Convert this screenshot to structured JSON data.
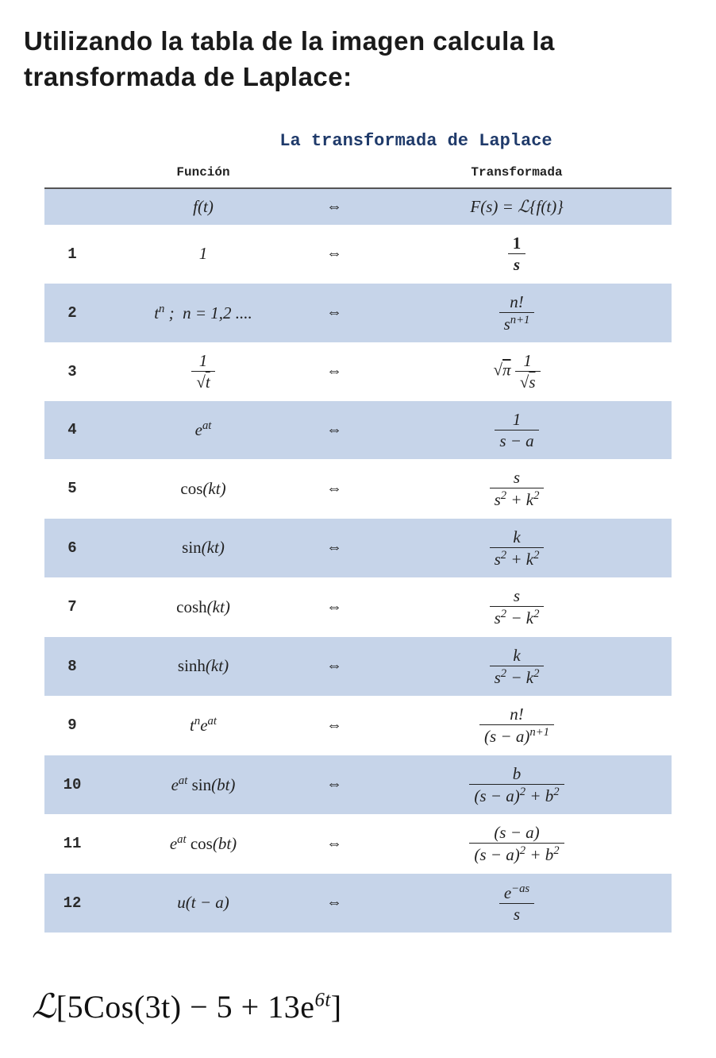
{
  "title_line1": "Utilizando la tabla de la imagen calcula la",
  "title_line2": "transformada de Laplace:",
  "figure": {
    "caption": "La transformada de Laplace",
    "header_func": "Función",
    "header_trans": "Transformada",
    "arrow_glyph": "⇔",
    "header_row": {
      "func": "f(t)",
      "trans_lhs": "F(s) = ℒ{f(t)}"
    },
    "rows": [
      {
        "n": "1",
        "func_html": "1",
        "trans_html": "<span class='frac'><span class='num'><b class='upright'>1</b></span><span class='den'><b>s</b></span></span>"
      },
      {
        "n": "2",
        "func_html": "t<span class='sup'>n</span> ;&nbsp; n = 1,2 ....",
        "trans_html": "<span class='frac'><span class='num'>n!</span><span class='den'>s<span class='sup'>n+1</span></span></span>"
      },
      {
        "n": "3",
        "func_html": "<span class='frac'><span class='num'>1</span><span class='den'>√<span style='text-decoration:overline'>t</span></span></span>",
        "trans_html": "√<span style='text-decoration:overline'>π</span> <span class='frac'><span class='num'>1</span><span class='den'>√<span style='text-decoration:overline'>s</span></span></span>"
      },
      {
        "n": "4",
        "func_html": "e<span class='sup'>at</span>",
        "trans_html": "<span class='frac'><span class='num'>1</span><span class='den'>s − a</span></span>"
      },
      {
        "n": "5",
        "func_html": "<span class='upright'>cos</span>(kt)",
        "trans_html": "<span class='frac'><span class='num'>s</span><span class='den'>s<span class='sup'>2</span> + k<span class='sup'>2</span></span></span>"
      },
      {
        "n": "6",
        "func_html": "<span class='upright'>sin</span>(kt)",
        "trans_html": "<span class='frac'><span class='num'>k</span><span class='den'>s<span class='sup'>2</span> + k<span class='sup'>2</span></span></span>"
      },
      {
        "n": "7",
        "func_html": "<span class='upright'>cosh</span>(kt)",
        "trans_html": "<span class='frac'><span class='num'>s</span><span class='den'>s<span class='sup'>2</span> − k<span class='sup'>2</span></span></span>"
      },
      {
        "n": "8",
        "func_html": "<span class='upright'>sinh</span>(kt)",
        "trans_html": "<span class='frac'><span class='num'>k</span><span class='den'>s<span class='sup'>2</span> − k<span class='sup'>2</span></span></span>"
      },
      {
        "n": "9",
        "func_html": "t<span class='sup'>n</span>e<span class='sup'>at</span>",
        "trans_html": "<span class='frac'><span class='num'>n!</span><span class='den'>(s − a)<span class='sup'>n+1</span></span></span>"
      },
      {
        "n": "10",
        "func_html": "e<span class='sup'>at</span> <span class='upright'>sin</span>(bt)",
        "trans_html": "<span class='frac'><span class='num'>b</span><span class='den'>(s − a)<span class='sup'>2</span> + b<span class='sup'>2</span></span></span>"
      },
      {
        "n": "11",
        "func_html": "e<span class='sup'>at</span> <span class='upright'>cos</span>(bt)",
        "trans_html": "<span class='frac'><span class='num'>(s − a)</span><span class='den'>(s − a)<span class='sup'>2</span> + b<span class='sup'>2</span></span></span>"
      },
      {
        "n": "12",
        "func_html": "u(t − a)",
        "trans_html": "<span class='frac'><span class='num'>e<span class='sup'>−as</span></span><span class='den'>s</span></span>"
      }
    ],
    "colors": {
      "band_even": "#c6d4e9",
      "band_odd": "#ffffff",
      "caption_color": "#1f3a6a",
      "text_color": "#222222",
      "rule_color": "#555555"
    },
    "font_sizes_pt": {
      "caption": 17,
      "header": 12,
      "cell": 16,
      "row_num": 14
    }
  },
  "problem": {
    "operator": "ℒ",
    "body": "[5Cos(3t) − 5 + 13e",
    "exp": "6t",
    "close": "]"
  }
}
